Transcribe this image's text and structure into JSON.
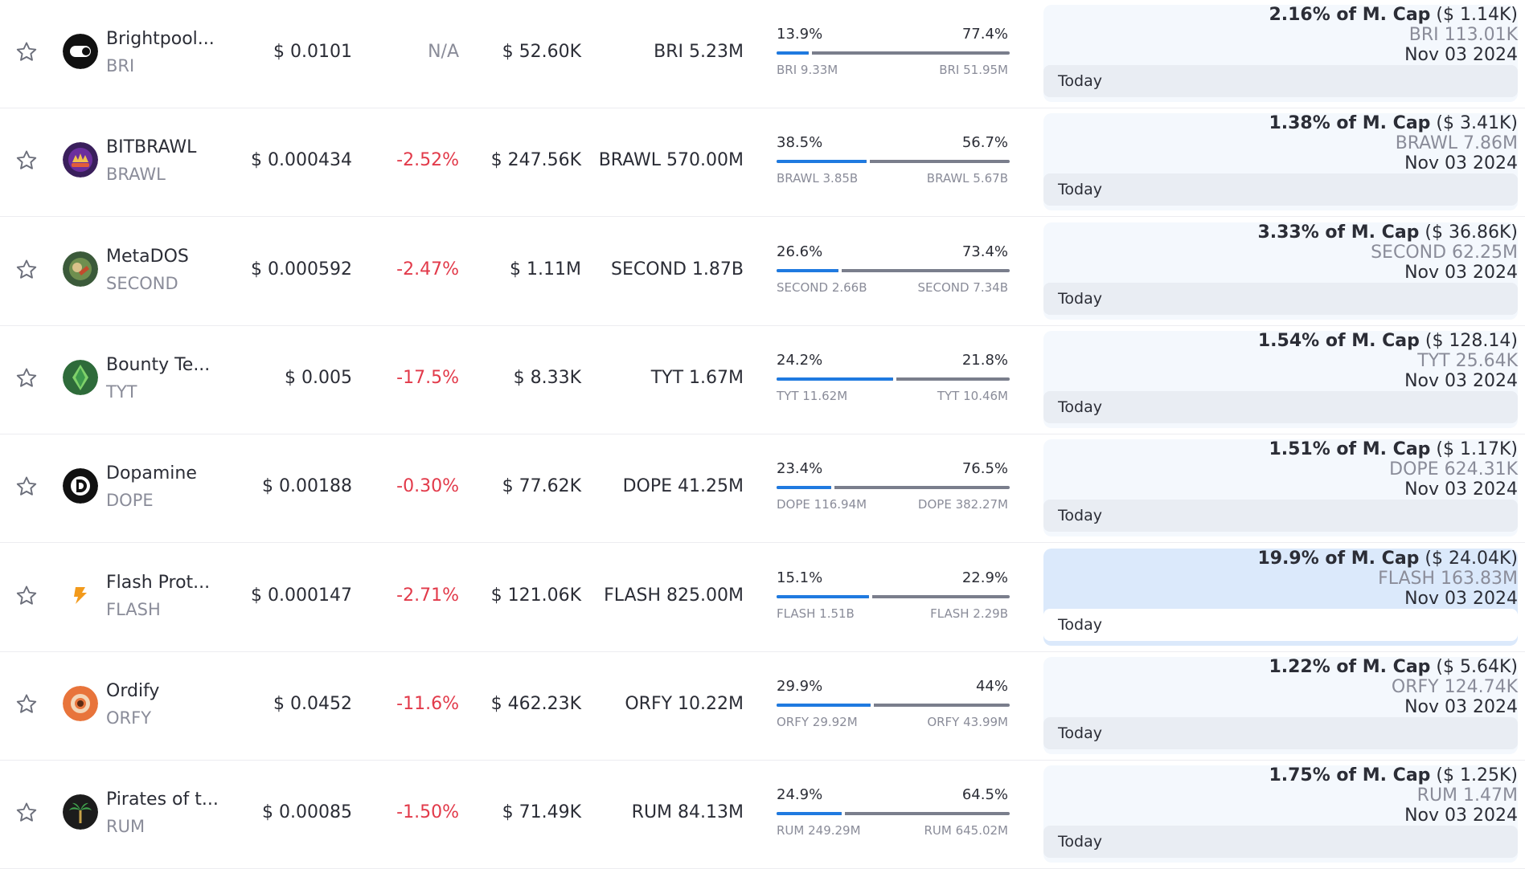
{
  "rows": [
    {
      "name": "Brightpool...",
      "symbol": "BRI",
      "price": "$ 0.0101",
      "change": "N/A",
      "change_type": "na",
      "market_cap": "$ 52.60K",
      "supply": "BRI 5.23M",
      "pct_left": "13.9%",
      "pct_right": "77.4%",
      "fill": 0.139,
      "amt_left": "BRI 9.33M",
      "amt_right": "BRI 51.95M",
      "unlock_pct": "2.16% of M. Cap",
      "unlock_usd": "($ 1.14K)",
      "unlock_amount": "BRI 113.01K",
      "date": "Nov 03 2024",
      "today": "Today",
      "logo_icon": "brightpool-logo-icon",
      "logo_color": "#111111"
    },
    {
      "name": "BITBRAWL",
      "symbol": "BRAWL",
      "price": "$ 0.000434",
      "change": "-2.52%",
      "change_type": "neg",
      "market_cap": "$ 247.56K",
      "supply": "BRAWL 570.00M",
      "pct_left": "38.5%",
      "pct_right": "56.7%",
      "fill": 0.385,
      "amt_left": "BRAWL 3.85B",
      "amt_right": "BRAWL 5.67B",
      "unlock_pct": "1.38% of M. Cap",
      "unlock_usd": "($ 3.41K)",
      "unlock_amount": "BRAWL 7.86M",
      "date": "Nov 03 2024",
      "today": "Today",
      "logo_icon": "bitbrawl-logo-icon",
      "logo_color": "#3a1f5c"
    },
    {
      "name": "MetaDOS",
      "symbol": "SECOND",
      "price": "$ 0.000592",
      "change": "-2.47%",
      "change_type": "neg",
      "market_cap": "$ 1.11M",
      "supply": "SECOND 1.87B",
      "pct_left": "26.6%",
      "pct_right": "73.4%",
      "fill": 0.266,
      "amt_left": "SECOND 2.66B",
      "amt_right": "SECOND 7.34B",
      "unlock_pct": "3.33% of M. Cap",
      "unlock_usd": "($ 36.86K)",
      "unlock_amount": "SECOND 62.25M",
      "date": "Nov 03 2024",
      "today": "Today",
      "logo_icon": "metados-logo-icon",
      "logo_color": "#3b5a3a"
    },
    {
      "name": "Bounty Te...",
      "symbol": "TYT",
      "price": "$ 0.005",
      "change": "-17.5%",
      "change_type": "neg",
      "market_cap": "$ 8.33K",
      "supply": "TYT 1.67M",
      "pct_left": "24.2%",
      "pct_right": "21.8%",
      "fill": 0.5,
      "amt_left": "TYT 11.62M",
      "amt_right": "TYT 10.46M",
      "unlock_pct": "1.54% of M. Cap",
      "unlock_usd": "($ 128.14)",
      "unlock_amount": "TYT 25.64K",
      "date": "Nov 03 2024",
      "today": "Today",
      "logo_icon": "bounty-temple-logo-icon",
      "logo_color": "#2e6b3a"
    },
    {
      "name": "Dopamine",
      "symbol": "DOPE",
      "price": "$ 0.00188",
      "change": "-0.30%",
      "change_type": "neg",
      "market_cap": "$ 77.62K",
      "supply": "DOPE 41.25M",
      "pct_left": "23.4%",
      "pct_right": "76.5%",
      "fill": 0.234,
      "amt_left": "DOPE 116.94M",
      "amt_right": "DOPE 382.27M",
      "unlock_pct": "1.51% of M. Cap",
      "unlock_usd": "($ 1.17K)",
      "unlock_amount": "DOPE 624.31K",
      "date": "Nov 03 2024",
      "today": "Today",
      "logo_icon": "dopamine-logo-icon",
      "logo_color": "#111111"
    },
    {
      "name": "Flash Prot...",
      "symbol": "FLASH",
      "price": "$ 0.000147",
      "change": "-2.71%",
      "change_type": "neg",
      "market_cap": "$ 121.06K",
      "supply": "FLASH 825.00M",
      "pct_left": "15.1%",
      "pct_right": "22.9%",
      "fill": 0.397,
      "amt_left": "FLASH 1.51B",
      "amt_right": "FLASH 2.29B",
      "unlock_pct": "19.9% of M. Cap",
      "unlock_usd": "($ 24.04K)",
      "unlock_amount": "FLASH 163.83M",
      "date": "Nov 03 2024",
      "today": "Today",
      "logo_icon": "flash-protocol-logo-icon",
      "logo_color": "#f29a1c",
      "highlight": true
    },
    {
      "name": "Ordify",
      "symbol": "ORFY",
      "price": "$ 0.0452",
      "change": "-11.6%",
      "change_type": "neg",
      "market_cap": "$ 462.23K",
      "supply": "ORFY 10.22M",
      "pct_left": "29.9%",
      "pct_right": "44%",
      "fill": 0.405,
      "amt_left": "ORFY 29.92M",
      "amt_right": "ORFY 43.99M",
      "unlock_pct": "1.22% of M. Cap",
      "unlock_usd": "($ 5.64K)",
      "unlock_amount": "ORFY 124.74K",
      "date": "Nov 03 2024",
      "today": "Today",
      "logo_icon": "ordify-logo-icon",
      "logo_color": "#e8743b"
    },
    {
      "name": "Pirates of t...",
      "symbol": "RUM",
      "price": "$ 0.00085",
      "change": "-1.50%",
      "change_type": "neg",
      "market_cap": "$ 71.49K",
      "supply": "RUM 84.13M",
      "pct_left": "24.9%",
      "pct_right": "64.5%",
      "fill": 0.28,
      "amt_left": "RUM 249.29M",
      "amt_right": "RUM 645.02M",
      "unlock_pct": "1.75% of M. Cap",
      "unlock_usd": "($ 1.25K)",
      "unlock_amount": "RUM 1.47M",
      "date": "Nov 03 2024",
      "today": "Today",
      "logo_icon": "pirates-logo-icon",
      "logo_color": "#1c1c1c"
    }
  ],
  "colors": {
    "negative": "#e23a4a",
    "bar_fill": "#1f7ae0",
    "bar_track": "#7a7e8c",
    "card_bg": "#f4f8fd",
    "card_highlight": "#dbe9fb"
  },
  "icons": {
    "star": "star-icon"
  }
}
